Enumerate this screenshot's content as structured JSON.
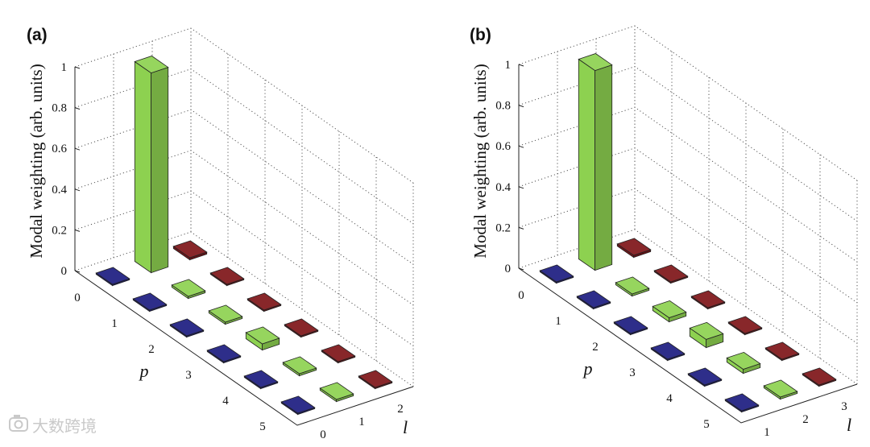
{
  "watermark": {
    "text": "大数跨境",
    "icon": "camera-logo-icon"
  },
  "palette": {
    "green": "#8dd150",
    "red": "#7e1418",
    "blue": "#1c1c80",
    "edge": "#222222"
  },
  "chart_data": [
    {
      "type": "bar3d",
      "panel_label": "(a)",
      "ylabel": "Modal weighting (arb. units)",
      "zlim": [
        0,
        1
      ],
      "z_ticks": [
        "0",
        "0.2",
        "0.4",
        "0.6",
        "0.8",
        "1"
      ],
      "p_name": "p",
      "l_name": "l",
      "p_ticks": [
        "0",
        "1",
        "2",
        "3",
        "4",
        "5"
      ],
      "l_ticks": [
        "0",
        "1",
        "2"
      ],
      "series": [
        {
          "l": "0",
          "color": "blue",
          "values": [
            0.0,
            0.0,
            0.0,
            0.0,
            0.0,
            0.0
          ]
        },
        {
          "l": "1",
          "color": "green",
          "values": [
            0.98,
            0.01,
            0.01,
            0.03,
            0.01,
            0.01
          ]
        },
        {
          "l": "2",
          "color": "red",
          "values": [
            0.01,
            0.0,
            0.0,
            0.0,
            0.0,
            0.0
          ]
        }
      ]
    },
    {
      "type": "bar3d",
      "panel_label": "(b)",
      "ylabel": "Modal weighting (arb. units)",
      "zlim": [
        0,
        1
      ],
      "z_ticks": [
        "0",
        "0.2",
        "0.4",
        "0.6",
        "0.8",
        "1"
      ],
      "p_name": "p",
      "l_name": "l",
      "p_ticks": [
        "0",
        "1",
        "2",
        "3",
        "4",
        "5"
      ],
      "l_ticks": [
        "1",
        "2",
        "3"
      ],
      "series": [
        {
          "l": "1",
          "color": "blue",
          "values": [
            0.0,
            0.0,
            0.0,
            0.0,
            0.0,
            0.0
          ]
        },
        {
          "l": "2",
          "color": "green",
          "values": [
            0.98,
            0.01,
            0.02,
            0.04,
            0.02,
            0.01
          ]
        },
        {
          "l": "3",
          "color": "red",
          "values": [
            0.01,
            0.0,
            0.0,
            0.0,
            0.0,
            0.0
          ]
        }
      ]
    }
  ]
}
